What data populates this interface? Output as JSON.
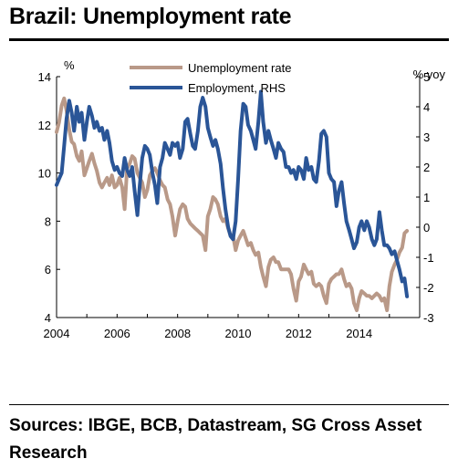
{
  "header": {
    "title": "Brazil: Unemployment rate"
  },
  "footer": {
    "source": "Sources: IBGE, BCB, Datastream, SG Cross Asset Research"
  },
  "chart_data": {
    "type": "line",
    "title": "Brazil: Unemployment rate",
    "left_axis": {
      "unit": "%",
      "ylim": [
        4,
        14
      ],
      "ticks": [
        4,
        6,
        8,
        10,
        12,
        14
      ]
    },
    "right_axis": {
      "unit": "% yoy",
      "ylim": [
        -3,
        5
      ],
      "ticks": [
        -3,
        -2,
        -1,
        0,
        1,
        2,
        3,
        4,
        5
      ]
    },
    "x_axis": {
      "xlim": [
        2004,
        2016
      ],
      "ticks": [
        2004,
        2006,
        2008,
        2010,
        2012,
        2014
      ]
    },
    "grid": false,
    "legend": {
      "placement": "top-center"
    },
    "series": [
      {
        "name": "Unemployment  rate",
        "axis": "left",
        "color": "#b99988",
        "points": [
          [
            2004.0,
            11.7
          ],
          [
            2004.08,
            12.1
          ],
          [
            2004.17,
            12.8
          ],
          [
            2004.25,
            13.1
          ],
          [
            2004.33,
            12.6
          ],
          [
            2004.42,
            11.8
          ],
          [
            2004.5,
            11.3
          ],
          [
            2004.58,
            11.2
          ],
          [
            2004.67,
            10.7
          ],
          [
            2004.75,
            10.5
          ],
          [
            2004.83,
            10.9
          ],
          [
            2004.92,
            9.9
          ],
          [
            2005.0,
            10.2
          ],
          [
            2005.08,
            10.5
          ],
          [
            2005.17,
            10.8
          ],
          [
            2005.25,
            10.4
          ],
          [
            2005.33,
            10.1
          ],
          [
            2005.42,
            9.6
          ],
          [
            2005.5,
            9.4
          ],
          [
            2005.58,
            9.6
          ],
          [
            2005.67,
            9.8
          ],
          [
            2005.75,
            9.5
          ],
          [
            2005.83,
            9.9
          ],
          [
            2005.92,
            9.4
          ],
          [
            2006.0,
            9.5
          ],
          [
            2006.08,
            9.8
          ],
          [
            2006.17,
            9.4
          ],
          [
            2006.25,
            8.5
          ],
          [
            2006.33,
            10.2
          ],
          [
            2006.42,
            10.4
          ],
          [
            2006.5,
            10.7
          ],
          [
            2006.58,
            10.6
          ],
          [
            2006.67,
            10.0
          ],
          [
            2006.75,
            9.8
          ],
          [
            2006.83,
            9.6
          ],
          [
            2006.92,
            9.0
          ],
          [
            2007.0,
            9.3
          ],
          [
            2007.08,
            9.9
          ],
          [
            2007.17,
            10.1
          ],
          [
            2007.25,
            10.2
          ],
          [
            2007.33,
            10.0
          ],
          [
            2007.42,
            9.7
          ],
          [
            2007.5,
            9.5
          ],
          [
            2007.58,
            9.4
          ],
          [
            2007.67,
            8.9
          ],
          [
            2007.75,
            8.7
          ],
          [
            2007.83,
            8.2
          ],
          [
            2007.92,
            7.4
          ],
          [
            2008.0,
            8.0
          ],
          [
            2008.08,
            8.5
          ],
          [
            2008.17,
            8.7
          ],
          [
            2008.25,
            8.6
          ],
          [
            2008.33,
            8.1
          ],
          [
            2008.42,
            7.9
          ],
          [
            2008.5,
            7.8
          ],
          [
            2008.58,
            7.7
          ],
          [
            2008.67,
            7.6
          ],
          [
            2008.75,
            7.5
          ],
          [
            2008.83,
            7.4
          ],
          [
            2008.92,
            6.8
          ],
          [
            2009.0,
            8.2
          ],
          [
            2009.08,
            8.5
          ],
          [
            2009.17,
            9.0
          ],
          [
            2009.25,
            8.9
          ],
          [
            2009.33,
            8.7
          ],
          [
            2009.42,
            8.2
          ],
          [
            2009.5,
            8.0
          ],
          [
            2009.58,
            8.1
          ],
          [
            2009.67,
            7.7
          ],
          [
            2009.75,
            7.4
          ],
          [
            2009.83,
            7.4
          ],
          [
            2009.92,
            6.8
          ],
          [
            2010.0,
            7.2
          ],
          [
            2010.08,
            7.4
          ],
          [
            2010.17,
            7.6
          ],
          [
            2010.25,
            7.3
          ],
          [
            2010.33,
            7.0
          ],
          [
            2010.42,
            7.1
          ],
          [
            2010.5,
            6.8
          ],
          [
            2010.58,
            6.6
          ],
          [
            2010.67,
            6.7
          ],
          [
            2010.75,
            6.1
          ],
          [
            2010.83,
            5.7
          ],
          [
            2010.92,
            5.3
          ],
          [
            2011.0,
            6.1
          ],
          [
            2011.08,
            6.4
          ],
          [
            2011.17,
            6.5
          ],
          [
            2011.25,
            6.3
          ],
          [
            2011.33,
            6.3
          ],
          [
            2011.42,
            6.0
          ],
          [
            2011.5,
            6.0
          ],
          [
            2011.58,
            6.0
          ],
          [
            2011.67,
            6.0
          ],
          [
            2011.75,
            5.8
          ],
          [
            2011.83,
            5.2
          ],
          [
            2011.92,
            4.7
          ],
          [
            2012.0,
            5.5
          ],
          [
            2012.08,
            5.7
          ],
          [
            2012.17,
            6.2
          ],
          [
            2012.25,
            6.0
          ],
          [
            2012.33,
            5.8
          ],
          [
            2012.42,
            5.9
          ],
          [
            2012.5,
            5.4
          ],
          [
            2012.58,
            5.3
          ],
          [
            2012.67,
            5.4
          ],
          [
            2012.75,
            5.3
          ],
          [
            2012.83,
            4.9
          ],
          [
            2012.92,
            4.6
          ],
          [
            2013.0,
            5.4
          ],
          [
            2013.08,
            5.6
          ],
          [
            2013.17,
            5.7
          ],
          [
            2013.25,
            5.8
          ],
          [
            2013.33,
            5.8
          ],
          [
            2013.42,
            6.0
          ],
          [
            2013.5,
            5.6
          ],
          [
            2013.58,
            5.3
          ],
          [
            2013.67,
            5.4
          ],
          [
            2013.75,
            5.2
          ],
          [
            2013.83,
            4.6
          ],
          [
            2013.92,
            4.3
          ],
          [
            2014.0,
            4.8
          ],
          [
            2014.08,
            5.1
          ],
          [
            2014.17,
            5.0
          ],
          [
            2014.25,
            4.9
          ],
          [
            2014.33,
            4.9
          ],
          [
            2014.42,
            4.8
          ],
          [
            2014.5,
            4.9
          ],
          [
            2014.58,
            5.0
          ],
          [
            2014.67,
            4.9
          ],
          [
            2014.75,
            4.7
          ],
          [
            2014.83,
            4.8
          ],
          [
            2014.92,
            4.3
          ],
          [
            2015.0,
            5.3
          ],
          [
            2015.08,
            5.9
          ],
          [
            2015.17,
            6.2
          ],
          [
            2015.25,
            6.4
          ],
          [
            2015.33,
            6.7
          ],
          [
            2015.42,
            6.9
          ],
          [
            2015.5,
            7.5
          ],
          [
            2015.58,
            7.6
          ]
        ]
      },
      {
        "name": "Employment,  RHS",
        "axis": "right",
        "color": "#2a5597",
        "points": [
          [
            2004.0,
            1.4
          ],
          [
            2004.08,
            1.6
          ],
          [
            2004.17,
            1.8
          ],
          [
            2004.25,
            2.7
          ],
          [
            2004.33,
            3.6
          ],
          [
            2004.42,
            4.2
          ],
          [
            2004.5,
            3.8
          ],
          [
            2004.58,
            3.2
          ],
          [
            2004.67,
            4.0
          ],
          [
            2004.75,
            3.5
          ],
          [
            2004.83,
            3.8
          ],
          [
            2004.92,
            2.9
          ],
          [
            2005.0,
            3.5
          ],
          [
            2005.08,
            4.0
          ],
          [
            2005.17,
            3.7
          ],
          [
            2005.25,
            3.3
          ],
          [
            2005.33,
            3.5
          ],
          [
            2005.42,
            3.2
          ],
          [
            2005.5,
            3.3
          ],
          [
            2005.58,
            2.9
          ],
          [
            2005.67,
            3.2
          ],
          [
            2005.75,
            2.8
          ],
          [
            2005.83,
            2.2
          ],
          [
            2005.92,
            1.9
          ],
          [
            2006.0,
            2.0
          ],
          [
            2006.08,
            1.8
          ],
          [
            2006.17,
            1.7
          ],
          [
            2006.25,
            2.3
          ],
          [
            2006.33,
            1.9
          ],
          [
            2006.42,
            1.7
          ],
          [
            2006.5,
            2.0
          ],
          [
            2006.58,
            1.2
          ],
          [
            2006.67,
            0.4
          ],
          [
            2006.75,
            1.4
          ],
          [
            2006.83,
            2.3
          ],
          [
            2006.92,
            2.7
          ],
          [
            2007.0,
            2.6
          ],
          [
            2007.08,
            2.4
          ],
          [
            2007.17,
            1.8
          ],
          [
            2007.25,
            1.4
          ],
          [
            2007.33,
            0.8
          ],
          [
            2007.42,
            2.0
          ],
          [
            2007.5,
            2.3
          ],
          [
            2007.58,
            2.8
          ],
          [
            2007.67,
            2.6
          ],
          [
            2007.75,
            2.4
          ],
          [
            2007.83,
            2.8
          ],
          [
            2007.92,
            2.7
          ],
          [
            2008.0,
            2.8
          ],
          [
            2008.08,
            2.3
          ],
          [
            2008.17,
            2.6
          ],
          [
            2008.25,
            3.5
          ],
          [
            2008.33,
            3.6
          ],
          [
            2008.42,
            3.1
          ],
          [
            2008.5,
            2.7
          ],
          [
            2008.58,
            2.6
          ],
          [
            2008.67,
            3.2
          ],
          [
            2008.75,
            4.0
          ],
          [
            2008.83,
            4.3
          ],
          [
            2008.92,
            4.0
          ],
          [
            2009.0,
            3.3
          ],
          [
            2009.08,
            3.0
          ],
          [
            2009.17,
            2.7
          ],
          [
            2009.25,
            2.9
          ],
          [
            2009.33,
            2.6
          ],
          [
            2009.42,
            2.1
          ],
          [
            2009.5,
            1.3
          ],
          [
            2009.58,
            0.6
          ],
          [
            2009.67,
            0.0
          ],
          [
            2009.75,
            -0.3
          ],
          [
            2009.83,
            -0.4
          ],
          [
            2009.92,
            0.2
          ],
          [
            2010.0,
            1.6
          ],
          [
            2010.08,
            3.2
          ],
          [
            2010.17,
            4.1
          ],
          [
            2010.25,
            4.0
          ],
          [
            2010.33,
            3.4
          ],
          [
            2010.42,
            3.2
          ],
          [
            2010.5,
            2.9
          ],
          [
            2010.58,
            2.6
          ],
          [
            2010.67,
            3.5
          ],
          [
            2010.75,
            4.5
          ],
          [
            2010.83,
            3.5
          ],
          [
            2010.92,
            2.8
          ],
          [
            2011.0,
            3.2
          ],
          [
            2011.08,
            2.9
          ],
          [
            2011.17,
            2.6
          ],
          [
            2011.25,
            2.3
          ],
          [
            2011.33,
            2.8
          ],
          [
            2011.42,
            2.6
          ],
          [
            2011.5,
            2.5
          ],
          [
            2011.58,
            2.0
          ],
          [
            2011.67,
            2.0
          ],
          [
            2011.75,
            1.8
          ],
          [
            2011.83,
            1.9
          ],
          [
            2011.92,
            1.6
          ],
          [
            2012.0,
            2.0
          ],
          [
            2012.08,
            1.9
          ],
          [
            2012.17,
            1.6
          ],
          [
            2012.25,
            2.3
          ],
          [
            2012.33,
            1.9
          ],
          [
            2012.42,
            2.0
          ],
          [
            2012.5,
            1.6
          ],
          [
            2012.58,
            1.5
          ],
          [
            2012.67,
            2.2
          ],
          [
            2012.75,
            3.1
          ],
          [
            2012.83,
            3.2
          ],
          [
            2012.92,
            3.0
          ],
          [
            2013.0,
            1.8
          ],
          [
            2013.08,
            1.6
          ],
          [
            2013.17,
            1.5
          ],
          [
            2013.25,
            0.7
          ],
          [
            2013.33,
            1.2
          ],
          [
            2013.42,
            1.5
          ],
          [
            2013.5,
            0.8
          ],
          [
            2013.58,
            0.2
          ],
          [
            2013.67,
            -0.1
          ],
          [
            2013.75,
            -0.4
          ],
          [
            2013.83,
            -0.7
          ],
          [
            2013.92,
            -0.5
          ],
          [
            2014.0,
            0.0
          ],
          [
            2014.08,
            0.2
          ],
          [
            2014.17,
            -0.1
          ],
          [
            2014.25,
            0.2
          ],
          [
            2014.33,
            0.0
          ],
          [
            2014.42,
            -0.4
          ],
          [
            2014.5,
            -0.6
          ],
          [
            2014.58,
            -0.4
          ],
          [
            2014.67,
            0.5
          ],
          [
            2014.75,
            -0.1
          ],
          [
            2014.83,
            -0.6
          ],
          [
            2014.92,
            -0.6
          ],
          [
            2015.0,
            -0.7
          ],
          [
            2015.08,
            -0.9
          ],
          [
            2015.17,
            -0.8
          ],
          [
            2015.25,
            -1.1
          ],
          [
            2015.33,
            -1.4
          ],
          [
            2015.42,
            -1.8
          ],
          [
            2015.5,
            -1.7
          ],
          [
            2015.58,
            -2.3
          ]
        ]
      }
    ]
  }
}
